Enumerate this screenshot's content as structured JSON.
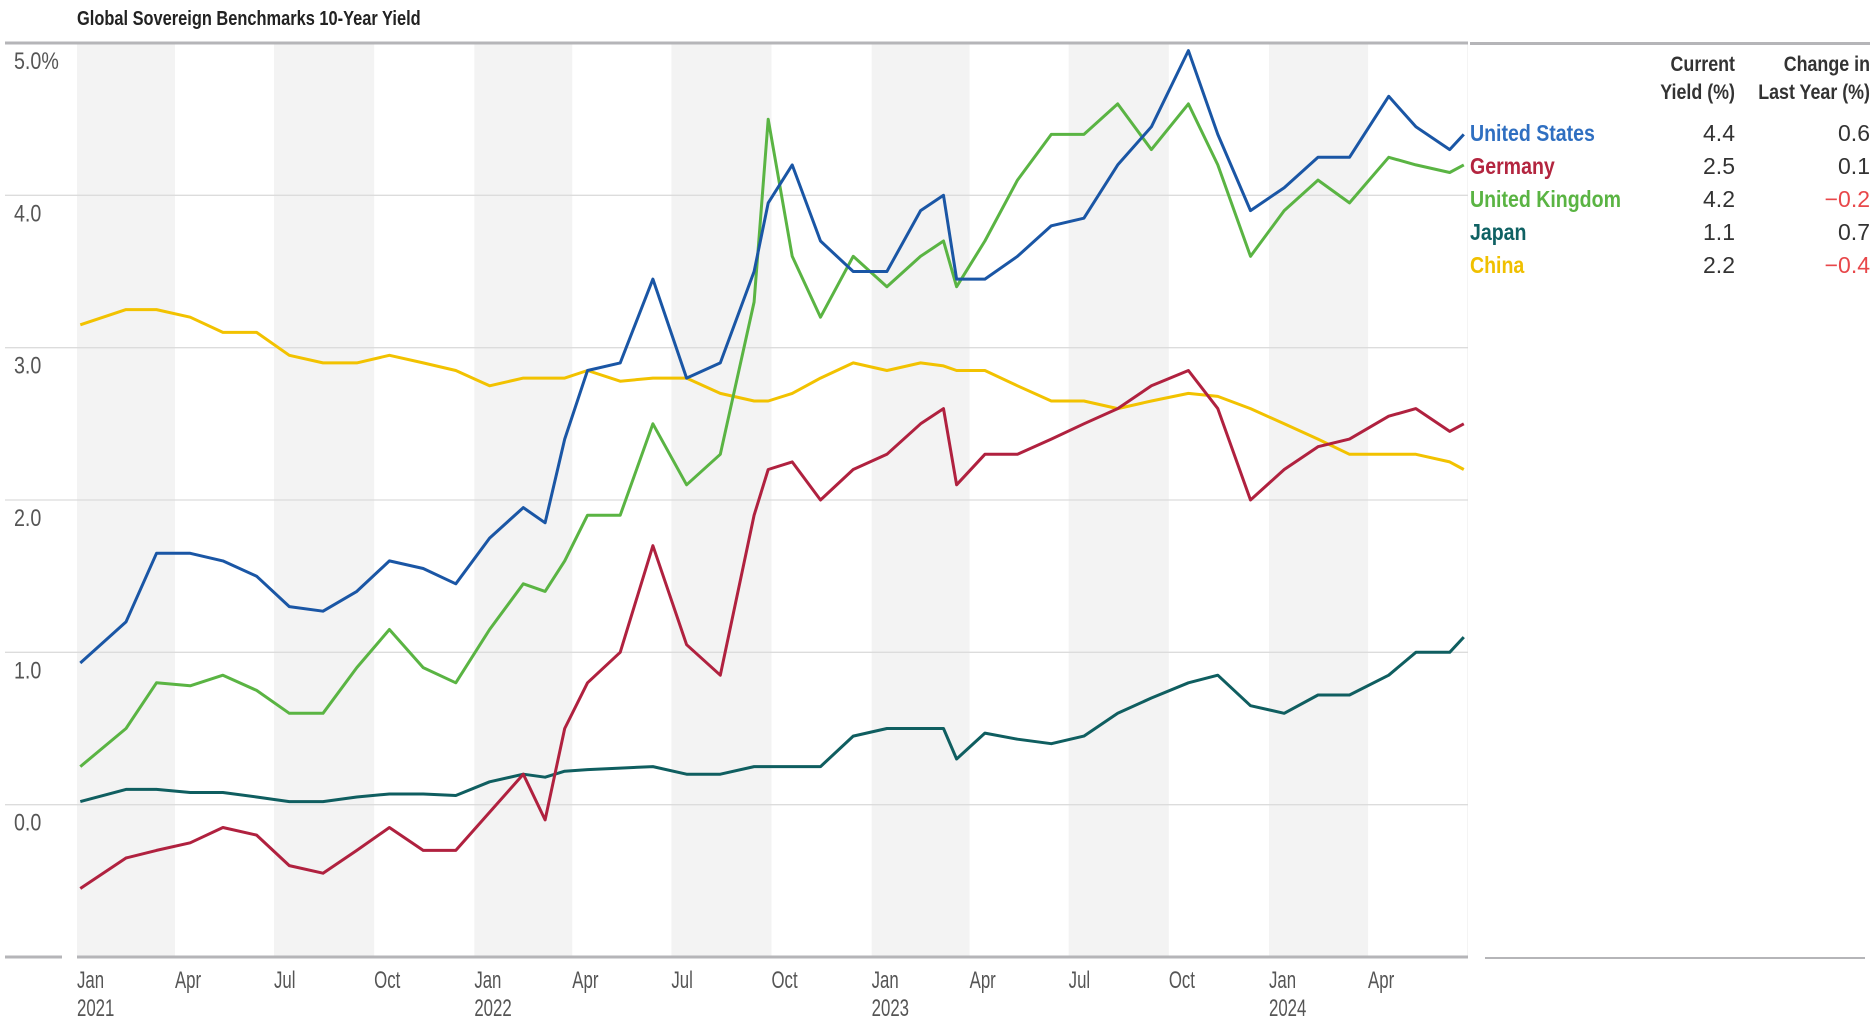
{
  "title": "Global Sovereign Benchmarks 10-Year Yield",
  "legend": {
    "header_yield": [
      "Current",
      "Yield (%)"
    ],
    "header_change": [
      "Change in",
      "Last Year (%)"
    ],
    "rows": [
      {
        "name": "United States",
        "yield": "4.4",
        "change": "0.6",
        "color": "#2f6fc1",
        "change_color": "#333333"
      },
      {
        "name": "Germany",
        "yield": "2.5",
        "change": "0.1",
        "color": "#b3253f",
        "change_color": "#333333"
      },
      {
        "name": "United Kingdom",
        "yield": "4.2",
        "change": "−0.2",
        "color": "#5ab443",
        "change_color": "#e8474a"
      },
      {
        "name": "Japan",
        "yield": "1.1",
        "change": "0.7",
        "color": "#0f6163",
        "change_color": "#333333"
      },
      {
        "name": "China",
        "yield": "2.2",
        "change": "−0.4",
        "color": "#f0c000",
        "change_color": "#e8474a"
      }
    ]
  },
  "chart_data": {
    "type": "line",
    "title": "Global Sovereign Benchmarks 10-Year Yield",
    "ylim": [
      -1,
      5
    ],
    "xlim": [
      "2021-01-01",
      "2024-06-28"
    ],
    "y_ticks": [
      "0.0",
      "1.0",
      "2.0",
      "3.0",
      "4.0",
      "5.0%"
    ],
    "y_tick_values": [
      0,
      1,
      2,
      3,
      4,
      5
    ],
    "x_ticks": [
      {
        "label": "Jan",
        "year": "2021",
        "date": "2021-01-01"
      },
      {
        "label": "Apr",
        "date": "2021-04-01"
      },
      {
        "label": "Jul",
        "date": "2021-07-01"
      },
      {
        "label": "Oct",
        "date": "2021-10-01"
      },
      {
        "label": "Jan",
        "year": "2022",
        "date": "2022-01-01"
      },
      {
        "label": "Apr",
        "date": "2022-04-01"
      },
      {
        "label": "Jul",
        "date": "2022-07-01"
      },
      {
        "label": "Oct",
        "date": "2022-10-01"
      },
      {
        "label": "Jan",
        "year": "2023",
        "date": "2023-01-01"
      },
      {
        "label": "Apr",
        "date": "2023-04-01"
      },
      {
        "label": "Jul",
        "date": "2023-07-01"
      },
      {
        "label": "Oct",
        "date": "2023-10-01"
      },
      {
        "label": "Jan",
        "year": "2024",
        "date": "2024-01-01"
      },
      {
        "label": "Apr",
        "date": "2024-04-01"
      }
    ],
    "grid": true,
    "shaded_quarters": "Q1 and Q3",
    "dates": [
      "2021-01-04",
      "2021-02-15",
      "2021-03-15",
      "2021-04-15",
      "2021-05-15",
      "2021-06-15",
      "2021-07-15",
      "2021-08-15",
      "2021-09-15",
      "2021-10-15",
      "2021-11-15",
      "2021-12-15",
      "2022-01-15",
      "2022-02-15",
      "2022-03-07",
      "2022-03-25",
      "2022-04-15",
      "2022-05-15",
      "2022-06-14",
      "2022-07-15",
      "2022-08-15",
      "2022-09-15",
      "2022-09-28",
      "2022-10-20",
      "2022-11-15",
      "2022-12-15",
      "2023-01-15",
      "2023-02-15",
      "2023-03-08",
      "2023-03-20",
      "2023-04-15",
      "2023-05-15",
      "2023-06-15",
      "2023-07-15",
      "2023-08-15",
      "2023-09-15",
      "2023-10-19",
      "2023-11-15",
      "2023-12-15",
      "2024-01-15",
      "2024-02-15",
      "2024-03-15",
      "2024-04-20",
      "2024-05-15",
      "2024-06-15",
      "2024-06-28"
    ],
    "series": [
      {
        "name": "United States",
        "color": "#1a56a5",
        "values": [
          0.93,
          1.2,
          1.65,
          1.65,
          1.6,
          1.5,
          1.3,
          1.27,
          1.4,
          1.6,
          1.55,
          1.45,
          1.75,
          1.95,
          1.85,
          2.4,
          2.85,
          2.9,
          3.45,
          2.8,
          2.9,
          3.5,
          3.95,
          4.2,
          3.7,
          3.5,
          3.5,
          3.9,
          4.0,
          3.45,
          3.45,
          3.6,
          3.8,
          3.85,
          4.2,
          4.45,
          4.95,
          4.4,
          3.9,
          4.05,
          4.25,
          4.25,
          4.65,
          4.45,
          4.3,
          4.4
        ]
      },
      {
        "name": "Germany",
        "color": "#b0213f",
        "values": [
          -0.55,
          -0.35,
          -0.3,
          -0.25,
          -0.15,
          -0.2,
          -0.4,
          -0.45,
          -0.3,
          -0.15,
          -0.3,
          -0.3,
          -0.05,
          0.2,
          -0.1,
          0.5,
          0.8,
          1.0,
          1.7,
          1.05,
          0.85,
          1.9,
          2.2,
          2.25,
          2.0,
          2.2,
          2.3,
          2.5,
          2.6,
          2.1,
          2.3,
          2.3,
          2.4,
          2.5,
          2.6,
          2.75,
          2.85,
          2.6,
          2.0,
          2.2,
          2.35,
          2.4,
          2.55,
          2.6,
          2.45,
          2.5
        ]
      },
      {
        "name": "United Kingdom",
        "color": "#5ab443",
        "values": [
          0.25,
          0.5,
          0.8,
          0.78,
          0.85,
          0.75,
          0.6,
          0.6,
          0.9,
          1.15,
          0.9,
          0.8,
          1.15,
          1.45,
          1.4,
          1.6,
          1.9,
          1.9,
          2.5,
          2.1,
          2.3,
          3.3,
          4.5,
          3.6,
          3.2,
          3.6,
          3.4,
          3.6,
          3.7,
          3.4,
          3.7,
          4.1,
          4.4,
          4.4,
          4.6,
          4.3,
          4.6,
          4.2,
          3.6,
          3.9,
          4.1,
          3.95,
          4.25,
          4.2,
          4.15,
          4.2
        ]
      },
      {
        "name": "Japan",
        "color": "#0f5e60",
        "values": [
          0.02,
          0.1,
          0.1,
          0.08,
          0.08,
          0.05,
          0.02,
          0.02,
          0.05,
          0.07,
          0.07,
          0.06,
          0.15,
          0.2,
          0.18,
          0.22,
          0.23,
          0.24,
          0.25,
          0.2,
          0.2,
          0.25,
          0.25,
          0.25,
          0.25,
          0.45,
          0.5,
          0.5,
          0.5,
          0.3,
          0.47,
          0.43,
          0.4,
          0.45,
          0.6,
          0.7,
          0.8,
          0.85,
          0.65,
          0.6,
          0.72,
          0.72,
          0.85,
          1.0,
          1.0,
          1.1
        ]
      },
      {
        "name": "China",
        "color": "#f2c200",
        "values": [
          3.15,
          3.25,
          3.25,
          3.2,
          3.1,
          3.1,
          2.95,
          2.9,
          2.9,
          2.95,
          2.9,
          2.85,
          2.75,
          2.8,
          2.8,
          2.8,
          2.85,
          2.78,
          2.8,
          2.8,
          2.7,
          2.65,
          2.65,
          2.7,
          2.8,
          2.9,
          2.85,
          2.9,
          2.88,
          2.85,
          2.85,
          2.75,
          2.65,
          2.65,
          2.6,
          2.65,
          2.7,
          2.68,
          2.6,
          2.5,
          2.4,
          2.3,
          2.3,
          2.3,
          2.25,
          2.2
        ]
      }
    ]
  }
}
